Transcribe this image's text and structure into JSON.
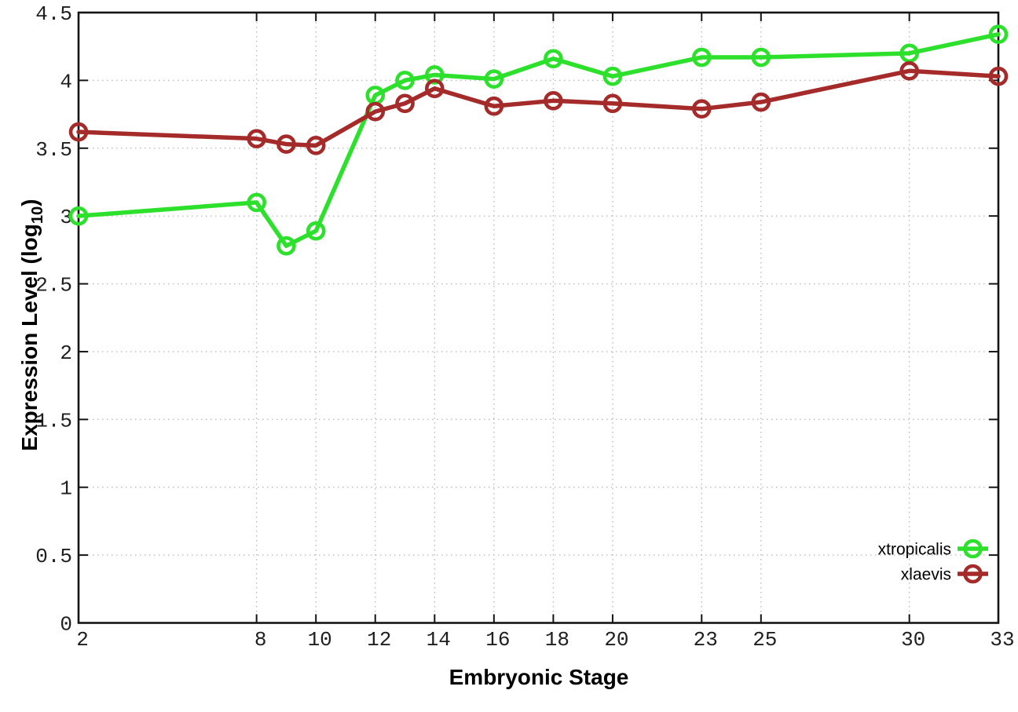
{
  "chart_data": {
    "type": "line",
    "title": "",
    "xlabel": "Embryonic Stage",
    "ylabel": "Expression Level (log10)",
    "ylabel_parts": {
      "pre": "Expression Level (log",
      "sub": "10",
      "post": ")"
    },
    "xlim": [
      2,
      33
    ],
    "ylim": [
      0,
      4.5
    ],
    "grid": true,
    "legend_position": "inside-bottom-right",
    "marker": "open-circle",
    "x": [
      2,
      8,
      9,
      10,
      12,
      13,
      14,
      16,
      18,
      20,
      23,
      25,
      30,
      33
    ],
    "series": [
      {
        "name": "xtropicalis",
        "color": "#2ce02c",
        "values": [
          3.0,
          3.1,
          2.78,
          2.89,
          3.89,
          4.0,
          4.04,
          4.01,
          4.16,
          4.03,
          4.17,
          4.17,
          4.2,
          4.34
        ]
      },
      {
        "name": "xlaevis",
        "color": "#a52a2a",
        "values": [
          3.62,
          3.57,
          3.53,
          3.52,
          3.77,
          3.83,
          3.94,
          3.81,
          3.85,
          3.83,
          3.79,
          3.84,
          4.07,
          4.03
        ]
      }
    ],
    "xtick_values": [
      2,
      8,
      10,
      12,
      14,
      16,
      18,
      20,
      23,
      25,
      30,
      33
    ],
    "xtick_labels": [
      "2",
      "8",
      "10",
      "12",
      "14",
      "16",
      "18",
      "20",
      "23",
      "25",
      "30",
      "33"
    ],
    "ytick_values": [
      0,
      0.5,
      1,
      1.5,
      2,
      2.5,
      3,
      3.5,
      4,
      4.5
    ],
    "ytick_labels": [
      "0",
      "0.5",
      "1",
      "1.5",
      "2",
      "2.5",
      "3",
      "3.5",
      "4",
      "4.5"
    ],
    "colors": {
      "axis": "#141414",
      "grid": "#bcbcbc",
      "tick_text": "#1f1f1f",
      "legend_text": "#000000"
    }
  }
}
